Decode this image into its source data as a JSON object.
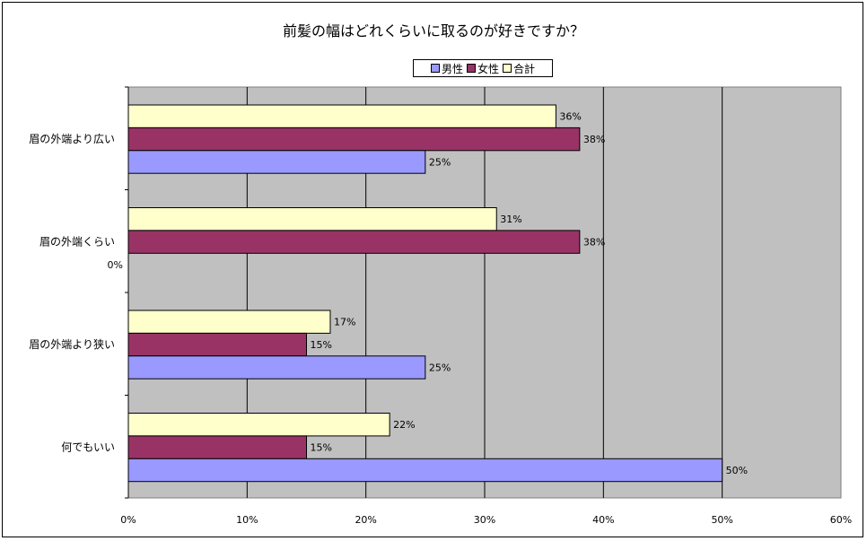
{
  "chart_data": {
    "type": "bar",
    "orientation": "horizontal",
    "title": "前髪の幅はどれくらいに取るのが好きですか？",
    "categories": [
      "眉の外端より広い",
      "眉の外端くらい",
      "眉の外端より狭い",
      "何でもいい"
    ],
    "series": [
      {
        "name": "男性",
        "values": [
          25,
          0,
          25,
          50
        ],
        "labels": [
          "25%",
          "0%",
          "25%",
          "50%"
        ],
        "color": "#9999FF"
      },
      {
        "name": "女性",
        "values": [
          38,
          38,
          15,
          15
        ],
        "labels": [
          "38%",
          "38%",
          "15%",
          "15%"
        ],
        "color": "#993366"
      },
      {
        "name": "合計",
        "values": [
          36,
          31,
          17,
          22
        ],
        "labels": [
          "36%",
          "31%",
          "17%",
          "22%"
        ],
        "color": "#FFFFCC"
      }
    ],
    "xlim": [
      0,
      60
    ],
    "xticks": [
      "0%",
      "10%",
      "20%",
      "30%",
      "40%",
      "50%",
      "60%"
    ],
    "grid": true,
    "legend_position": "top",
    "plot_background": "#C0C0C0"
  }
}
